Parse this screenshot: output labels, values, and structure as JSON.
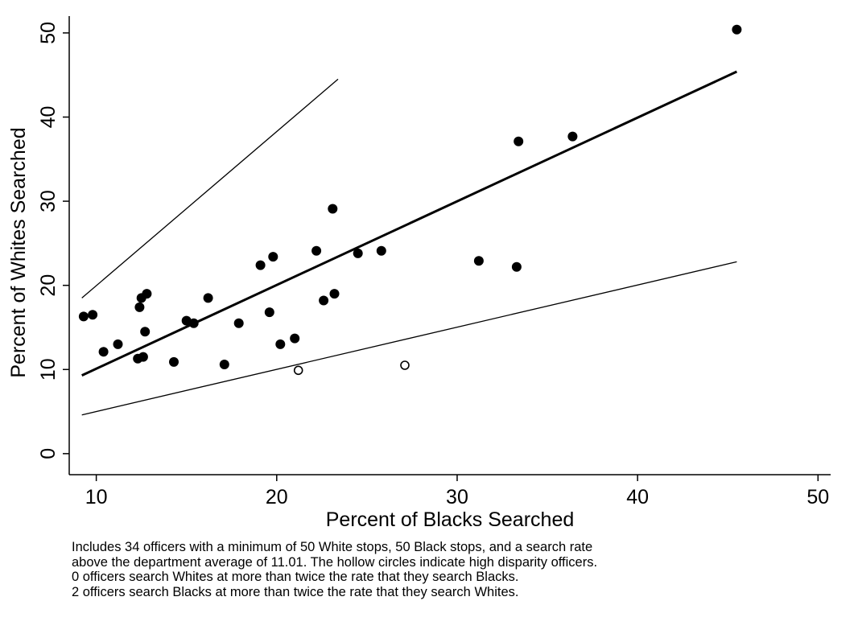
{
  "chart_data": {
    "type": "scatter",
    "xlabel": "Percent of Blacks Searched",
    "ylabel": "Percent of Whites Searched",
    "xlim": [
      8.5,
      50.7
    ],
    "ylim": [
      -2.5,
      52
    ],
    "x_ticks": [
      10,
      20,
      30,
      40,
      50
    ],
    "y_ticks": [
      0,
      10,
      20,
      30,
      40,
      50
    ],
    "grid": false,
    "points": [
      {
        "x": 9.3,
        "y": 16.3
      },
      {
        "x": 9.8,
        "y": 16.5
      },
      {
        "x": 10.4,
        "y": 12.1
      },
      {
        "x": 11.2,
        "y": 13.0
      },
      {
        "x": 12.3,
        "y": 11.3
      },
      {
        "x": 12.4,
        "y": 17.4
      },
      {
        "x": 12.5,
        "y": 18.5
      },
      {
        "x": 12.6,
        "y": 11.5
      },
      {
        "x": 12.7,
        "y": 14.5
      },
      {
        "x": 12.8,
        "y": 19.0
      },
      {
        "x": 14.3,
        "y": 10.9
      },
      {
        "x": 15.0,
        "y": 15.8
      },
      {
        "x": 15.4,
        "y": 15.5
      },
      {
        "x": 16.2,
        "y": 18.5
      },
      {
        "x": 17.1,
        "y": 10.6
      },
      {
        "x": 17.9,
        "y": 15.5
      },
      {
        "x": 19.1,
        "y": 22.4
      },
      {
        "x": 19.6,
        "y": 16.8
      },
      {
        "x": 19.8,
        "y": 23.4
      },
      {
        "x": 20.2,
        "y": 13.0
      },
      {
        "x": 21.0,
        "y": 13.7
      },
      {
        "x": 22.2,
        "y": 24.1
      },
      {
        "x": 22.6,
        "y": 18.2
      },
      {
        "x": 23.1,
        "y": 29.1
      },
      {
        "x": 23.2,
        "y": 19.0
      },
      {
        "x": 24.5,
        "y": 23.8
      },
      {
        "x": 25.8,
        "y": 24.1
      },
      {
        "x": 31.2,
        "y": 22.9
      },
      {
        "x": 33.3,
        "y": 22.2
      },
      {
        "x": 33.4,
        "y": 37.1
      },
      {
        "x": 36.4,
        "y": 37.7
      },
      {
        "x": 45.5,
        "y": 50.4
      }
    ],
    "hollow_points": [
      {
        "x": 21.2,
        "y": 9.9
      },
      {
        "x": 27.1,
        "y": 10.5
      }
    ],
    "lines": [
      {
        "role": "twice-rate-upper",
        "x": [
          9.2,
          23.4
        ],
        "y": [
          18.5,
          44.5
        ]
      },
      {
        "role": "fit-line",
        "x": [
          9.2,
          45.5
        ],
        "y": [
          9.3,
          45.4
        ]
      },
      {
        "role": "twice-rate-lower",
        "x": [
          9.2,
          45.5
        ],
        "y": [
          4.6,
          22.8
        ]
      }
    ]
  },
  "caption": {
    "lines": [
      "Includes 34 officers with a minimum of 50 White stops, 50 Black stops, and a search rate",
      "above the department average of 11.01. The hollow circles indicate high disparity officers.",
      "0 officers search Whites at more than twice the rate that they search Blacks.",
      "2 officers search Blacks at more than twice the rate that they search Whites."
    ]
  }
}
